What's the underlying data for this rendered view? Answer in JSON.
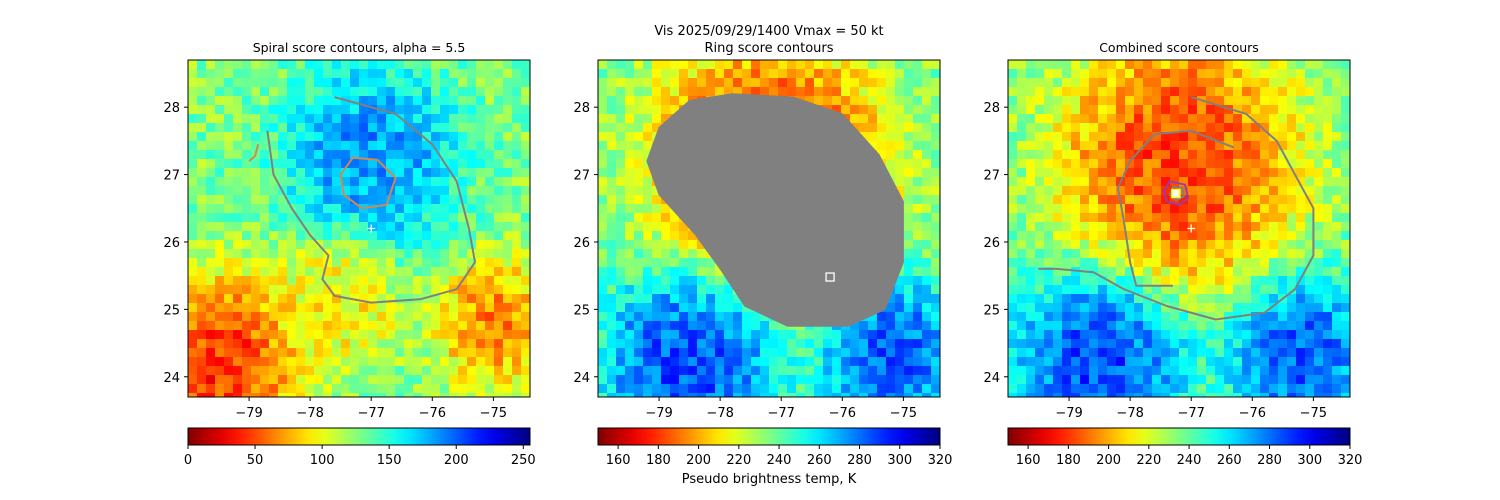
{
  "suptitle": {
    "line1": "Vis  2025/09/29/1400    Vmax = 50 kt",
    "line2": "Ring score contours"
  },
  "colors": {
    "background": "#ffffff",
    "axis": "#000000",
    "contour_gray": "#808080",
    "contour_orange": "#cd8a52",
    "contour_purple": "#9b3da6",
    "marker_white": "#ffffff",
    "marker_yellow": "#ffff00"
  },
  "chart_data": [
    {
      "type": "heatmap",
      "title": "Spiral score contours, alpha =  5.5",
      "colormap": "jet_r",
      "xlim": [
        -80.0,
        -74.4
      ],
      "ylim": [
        23.7,
        28.7
      ],
      "x_ticks": [
        -79,
        -78,
        -77,
        -76,
        -75
      ],
      "x_tick_labels": [
        "−79",
        "−78",
        "−77",
        "−76",
        "−75"
      ],
      "y_ticks": [
        24,
        25,
        26,
        27,
        28
      ],
      "y_tick_labels": [
        "24",
        "25",
        "26",
        "27",
        "28"
      ],
      "image_field": "brightness_counts",
      "image_regions": [
        {
          "lon": -77.0,
          "lat": 27.2,
          "radius": 1.2,
          "value": 205
        },
        {
          "lon": -79.5,
          "lat": 24.2,
          "radius": 1.1,
          "value": 15
        },
        {
          "lon": -75.0,
          "lat": 24.8,
          "radius": 0.8,
          "value": 45
        },
        {
          "lon": -77.5,
          "lat": 25.2,
          "radius": 0.9,
          "value": 80
        }
      ],
      "colorbar": {
        "range": [
          0,
          255
        ],
        "ticks": [
          0,
          50,
          100,
          150,
          200,
          250
        ],
        "tick_labels": [
          "0",
          "50",
          "100",
          "150",
          "200",
          "250"
        ],
        "label": ""
      },
      "contours": [
        {
          "name": "spiral-arm-contour",
          "color_key": "contour_gray",
          "closed": false,
          "points": [
            [
              -77.6,
              28.15
            ],
            [
              -76.6,
              27.9
            ],
            [
              -76.0,
              27.45
            ],
            [
              -75.6,
              26.9
            ],
            [
              -75.4,
              26.2
            ],
            [
              -75.3,
              25.7
            ],
            [
              -75.6,
              25.3
            ],
            [
              -76.2,
              25.15
            ],
            [
              -77.0,
              25.1
            ],
            [
              -77.6,
              25.2
            ],
            [
              -77.8,
              25.45
            ],
            [
              -77.7,
              25.8
            ],
            [
              -78.0,
              26.1
            ],
            [
              -78.3,
              26.5
            ],
            [
              -78.6,
              27.0
            ],
            [
              -78.7,
              27.65
            ]
          ]
        },
        {
          "name": "eye-contour",
          "color_key": "contour_orange",
          "closed": true,
          "points": [
            [
              -77.3,
              27.25
            ],
            [
              -76.9,
              27.22
            ],
            [
              -76.6,
              26.95
            ],
            [
              -76.75,
              26.55
            ],
            [
              -77.15,
              26.5
            ],
            [
              -77.45,
              26.7
            ],
            [
              -77.5,
              27.0
            ]
          ]
        },
        {
          "name": "small-arc-contour",
          "color_key": "contour_orange",
          "closed": false,
          "points": [
            [
              -79.0,
              27.2
            ],
            [
              -78.9,
              27.28
            ],
            [
              -78.85,
              27.45
            ]
          ]
        }
      ],
      "markers": [
        {
          "name": "first-guess-center-marker",
          "lon": -77.0,
          "lat": 26.2,
          "shape": "plus",
          "color_key": "marker_white"
        }
      ]
    },
    {
      "type": "heatmap",
      "title": "Ring score contours",
      "colormap": "jet_r",
      "xlim": [
        -80.0,
        -74.4
      ],
      "ylim": [
        23.7,
        28.7
      ],
      "x_ticks": [
        -79,
        -78,
        -77,
        -76,
        -75
      ],
      "x_tick_labels": [
        "−79",
        "−78",
        "−77",
        "−76",
        "−75"
      ],
      "y_ticks": [
        24,
        25,
        26,
        27,
        28
      ],
      "y_tick_labels": [
        "24",
        "25",
        "26",
        "27",
        "28"
      ],
      "image_field": "pseudo_brightness_temp",
      "image_regions": [
        {
          "lon": -77.2,
          "lat": 27.2,
          "radius": 1.6,
          "value": 165
        },
        {
          "lon": -78.5,
          "lat": 24.2,
          "radius": 1.2,
          "value": 305
        },
        {
          "lon": -75.2,
          "lat": 24.3,
          "radius": 1.0,
          "value": 300
        }
      ],
      "colorbar": {
        "range": [
          150,
          320
        ],
        "ticks": [
          160,
          180,
          200,
          220,
          240,
          260,
          280,
          300,
          320
        ],
        "tick_labels": [
          "160",
          "180",
          "200",
          "220",
          "240",
          "260",
          "280",
          "300",
          "320"
        ],
        "label": "Pseudo brightness temp, K"
      },
      "contours": [
        {
          "name": "ring-score-region",
          "color_key": "contour_gray",
          "closed": true,
          "filled": true,
          "points": [
            [
              -77.8,
              28.2
            ],
            [
              -76.8,
              28.15
            ],
            [
              -76.0,
              27.9
            ],
            [
              -75.4,
              27.3
            ],
            [
              -75.0,
              26.6
            ],
            [
              -75.0,
              25.7
            ],
            [
              -75.3,
              25.0
            ],
            [
              -75.9,
              24.75
            ],
            [
              -76.9,
              24.75
            ],
            [
              -77.6,
              25.05
            ],
            [
              -78.0,
              25.6
            ],
            [
              -78.4,
              26.1
            ],
            [
              -79.0,
              26.7
            ],
            [
              -79.2,
              27.2
            ],
            [
              -79.0,
              27.7
            ],
            [
              -78.5,
              28.1
            ]
          ]
        }
      ],
      "markers": [
        {
          "name": "ring-center-marker",
          "lon": -76.2,
          "lat": 25.48,
          "shape": "square",
          "color_key": "marker_white"
        }
      ]
    },
    {
      "type": "heatmap",
      "title": "Combined score contours",
      "colormap": "jet_r",
      "xlim": [
        -80.0,
        -74.4
      ],
      "ylim": [
        23.7,
        28.7
      ],
      "x_ticks": [
        -79,
        -78,
        -77,
        -76,
        -75
      ],
      "x_tick_labels": [
        "−79",
        "−78",
        "−77",
        "−76",
        "−75"
      ],
      "y_ticks": [
        24,
        25,
        26,
        27,
        28
      ],
      "y_tick_labels": [
        "24",
        "25",
        "26",
        "27",
        "28"
      ],
      "image_field": "pseudo_brightness_temp",
      "image_regions": [
        {
          "lon": -77.2,
          "lat": 27.2,
          "radius": 1.6,
          "value": 165
        },
        {
          "lon": -78.5,
          "lat": 24.2,
          "radius": 1.2,
          "value": 305
        },
        {
          "lon": -75.2,
          "lat": 24.3,
          "radius": 1.0,
          "value": 300
        }
      ],
      "colorbar": {
        "range": [
          150,
          320
        ],
        "ticks": [
          160,
          180,
          200,
          220,
          240,
          260,
          280,
          300,
          320
        ],
        "tick_labels": [
          "160",
          "180",
          "200",
          "220",
          "240",
          "260",
          "280",
          "300",
          "320"
        ],
        "label": ""
      },
      "contours": [
        {
          "name": "combined-outer-contour",
          "color_key": "contour_gray",
          "closed": false,
          "points": [
            [
              -77.0,
              28.15
            ],
            [
              -76.1,
              27.9
            ],
            [
              -75.6,
              27.5
            ],
            [
              -75.3,
              27.0
            ],
            [
              -75.0,
              26.5
            ],
            [
              -75.0,
              25.8
            ],
            [
              -75.3,
              25.3
            ],
            [
              -75.8,
              24.95
            ],
            [
              -76.6,
              24.85
            ],
            [
              -77.4,
              25.05
            ],
            [
              -78.1,
              25.3
            ],
            [
              -78.6,
              25.55
            ],
            [
              -79.2,
              25.6
            ],
            [
              -79.5,
              25.6
            ]
          ]
        },
        {
          "name": "combined-inner-contour",
          "color_key": "contour_gray",
          "closed": false,
          "points": [
            [
              -77.3,
              25.35
            ],
            [
              -77.9,
              25.35
            ],
            [
              -78.0,
              25.7
            ],
            [
              -78.1,
              26.3
            ],
            [
              -78.2,
              26.8
            ],
            [
              -78.0,
              27.2
            ],
            [
              -77.6,
              27.6
            ],
            [
              -77.0,
              27.65
            ],
            [
              -76.3,
              27.4
            ]
          ]
        },
        {
          "name": "combined-center-contour",
          "color_key": "contour_purple",
          "closed": true,
          "points": [
            [
              -77.35,
              26.9
            ],
            [
              -77.1,
              26.85
            ],
            [
              -77.05,
              26.65
            ],
            [
              -77.2,
              26.55
            ],
            [
              -77.4,
              26.6
            ],
            [
              -77.45,
              26.75
            ]
          ]
        },
        {
          "name": "combined-center-inner-contour",
          "color_key": "contour_gray",
          "closed": true,
          "points": [
            [
              -77.3,
              26.82
            ],
            [
              -77.15,
              26.8
            ],
            [
              -77.12,
              26.68
            ],
            [
              -77.25,
              26.62
            ],
            [
              -77.35,
              26.7
            ]
          ]
        }
      ],
      "markers": [
        {
          "name": "combined-center-marker",
          "lon": -77.25,
          "lat": 26.72,
          "shape": "square-yellow",
          "color_key": "marker_yellow"
        },
        {
          "name": "first-guess-center-marker",
          "lon": -77.0,
          "lat": 26.2,
          "shape": "plus",
          "color_key": "marker_white"
        }
      ]
    }
  ]
}
